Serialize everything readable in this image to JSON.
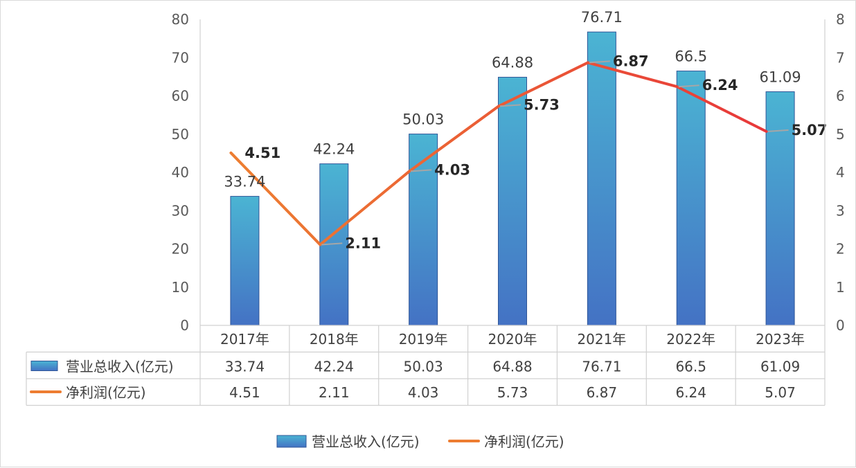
{
  "chart_data": {
    "type": "bar",
    "categories": [
      "2017年",
      "2018年",
      "2019年",
      "2020年",
      "2021年",
      "2022年",
      "2023年"
    ],
    "series": [
      {
        "name": "营业总收入(亿元)",
        "type": "bar",
        "axis": "left",
        "values": [
          33.74,
          42.24,
          50.03,
          64.88,
          76.71,
          66.5,
          61.09
        ],
        "labels": [
          "33.74",
          "42.24",
          "50.03",
          "64.88",
          "76.71",
          "66.5",
          "61.09"
        ],
        "color_top": "#4bb4d3",
        "color_bottom": "#4472c4",
        "border": "#2f5597"
      },
      {
        "name": "净利润(亿元)",
        "type": "line",
        "axis": "right",
        "values": [
          4.51,
          2.11,
          4.03,
          5.73,
          6.87,
          6.24,
          5.07
        ],
        "labels": [
          "4.51",
          "2.11",
          "4.03",
          "5.73",
          "6.87",
          "6.24",
          "5.07"
        ],
        "color_start": "#ed7d31",
        "color_end": "#e8363a"
      }
    ],
    "y_left": {
      "range": [
        0,
        80
      ],
      "ticks": [
        "0",
        "10",
        "20",
        "30",
        "40",
        "50",
        "60",
        "70",
        "80"
      ]
    },
    "y_right": {
      "range": [
        0,
        8
      ],
      "ticks": [
        "0",
        "1",
        "2",
        "3",
        "4",
        "5",
        "6",
        "7",
        "8"
      ]
    },
    "data_table": true,
    "legend_position": "bottom"
  }
}
